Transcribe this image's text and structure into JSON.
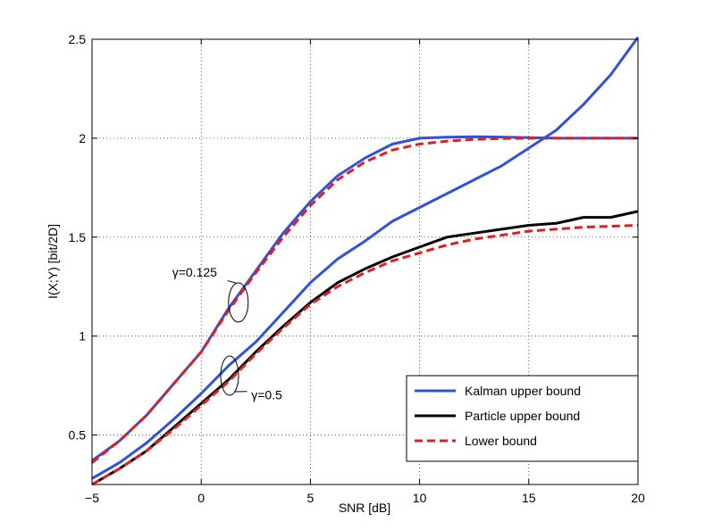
{
  "chart_data": {
    "type": "line",
    "xlabel": "SNR [dB]",
    "ylabel": "I(X;Y) [bit/2D]",
    "xlim": [
      -5,
      20
    ],
    "ylim": [
      0.25,
      2.5
    ],
    "xticks": [
      -5,
      0,
      5,
      10,
      15,
      20
    ],
    "xtick_labels": [
      "−5",
      "0",
      "5",
      "10",
      "15",
      "20"
    ],
    "yticks": [
      0.5,
      1,
      1.5,
      2,
      2.5
    ],
    "ytick_labels": [
      "0.5",
      "1",
      "1.5",
      "2",
      "2.5"
    ],
    "grid": true,
    "legend_position": "bottom-right",
    "legend": [
      {
        "label": "Kalman upper bound",
        "color": "#3050e0",
        "style": "solid"
      },
      {
        "label": "Particle upper bound",
        "color": "#000000",
        "style": "solid"
      },
      {
        "label": "Lower bound",
        "color": "#e81c1c",
        "style": "dashed"
      }
    ],
    "series": [
      {
        "name": "Kalman upper bound",
        "group": "γ=0.125",
        "color": "#3050e0",
        "style": "solid",
        "x": [
          -5,
          -3.75,
          -2.5,
          -1.25,
          0,
          1.25,
          2.5,
          3.75,
          5,
          6.25,
          7.5,
          8.75,
          10,
          11.25,
          12.5,
          13.75,
          15,
          16.25,
          17.5,
          18.75,
          20
        ],
        "y": [
          0.37,
          0.47,
          0.6,
          0.76,
          0.92,
          1.14,
          1.33,
          1.52,
          1.68,
          1.81,
          1.9,
          1.97,
          2.0,
          2.005,
          2.007,
          2.006,
          2.003,
          2.0,
          2.0,
          2.0,
          2.0
        ]
      },
      {
        "name": "Lower bound",
        "group": "γ=0.125",
        "color": "#e81c1c",
        "style": "dashed",
        "x": [
          -5,
          -3.75,
          -2.5,
          -1.25,
          0,
          1.25,
          2.5,
          3.75,
          5,
          6.25,
          7.5,
          8.75,
          10,
          11.25,
          12.5,
          13.75,
          15,
          16.25,
          17.5,
          18.75,
          20
        ],
        "y": [
          0.36,
          0.47,
          0.6,
          0.76,
          0.92,
          1.13,
          1.32,
          1.5,
          1.66,
          1.79,
          1.88,
          1.94,
          1.97,
          1.985,
          1.994,
          1.998,
          2.0,
          2.0,
          2.0,
          2.0,
          2.0
        ]
      },
      {
        "name": "Kalman upper bound",
        "group": "γ=0.5",
        "color": "#3050e0",
        "style": "solid",
        "x": [
          -5,
          -3.75,
          -2.5,
          -1.25,
          0,
          1.25,
          2.5,
          3.75,
          5,
          6.25,
          7.5,
          8.75,
          10,
          11.25,
          12.5,
          13.75,
          15,
          16.25,
          17.5,
          18.75,
          20
        ],
        "y": [
          0.28,
          0.36,
          0.46,
          0.58,
          0.71,
          0.85,
          0.97,
          1.12,
          1.27,
          1.39,
          1.48,
          1.58,
          1.65,
          1.72,
          1.79,
          1.86,
          1.95,
          2.04,
          2.17,
          2.32,
          2.51
        ]
      },
      {
        "name": "Particle upper bound",
        "group": "γ=0.5",
        "color": "#000000",
        "style": "solid",
        "x": [
          -5,
          -3.75,
          -2.5,
          -1.25,
          0,
          1.25,
          2.5,
          3.75,
          5,
          6.25,
          7.5,
          8.75,
          10,
          11.25,
          12.5,
          13.75,
          15,
          16.25,
          17.5,
          18.75,
          20
        ],
        "y": [
          0.25,
          0.33,
          0.42,
          0.54,
          0.66,
          0.78,
          0.92,
          1.05,
          1.17,
          1.27,
          1.34,
          1.4,
          1.45,
          1.5,
          1.52,
          1.54,
          1.56,
          1.57,
          1.6,
          1.6,
          1.63
        ]
      },
      {
        "name": "Lower bound",
        "group": "γ=0.5",
        "color": "#e81c1c",
        "style": "dashed",
        "x": [
          -5,
          -3.75,
          -2.5,
          -1.25,
          0,
          1.25,
          2.5,
          3.75,
          5,
          6.25,
          7.5,
          8.75,
          10,
          11.25,
          12.5,
          13.75,
          15,
          16.25,
          17.5,
          18.75,
          20
        ],
        "y": [
          0.25,
          0.33,
          0.42,
          0.53,
          0.65,
          0.77,
          0.91,
          1.04,
          1.16,
          1.25,
          1.32,
          1.38,
          1.42,
          1.46,
          1.49,
          1.51,
          1.53,
          1.54,
          1.55,
          1.555,
          1.56
        ]
      }
    ],
    "annotations": [
      {
        "text": "γ=0.125",
        "x": 1.6,
        "y": 1.17
      },
      {
        "text": "γ=0.5",
        "x": 1.3,
        "y": 0.8
      }
    ]
  }
}
